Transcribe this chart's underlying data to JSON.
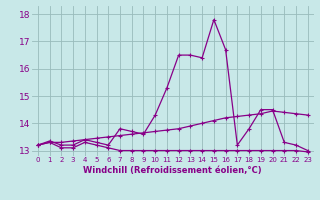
{
  "xlabel": "Windchill (Refroidissement éolien,°C)",
  "x": [
    0,
    1,
    2,
    3,
    4,
    5,
    6,
    7,
    8,
    9,
    10,
    11,
    12,
    13,
    14,
    15,
    16,
    17,
    18,
    19,
    20,
    21,
    22,
    23
  ],
  "line_flat": [
    13.2,
    13.3,
    13.1,
    13.1,
    13.3,
    13.2,
    13.1,
    13.0,
    13.0,
    13.0,
    13.0,
    13.0,
    13.0,
    13.0,
    13.0,
    13.0,
    13.0,
    13.0,
    13.0,
    13.0,
    13.0,
    13.0,
    13.0,
    12.95
  ],
  "line_peak": [
    13.2,
    13.35,
    13.2,
    13.2,
    13.4,
    13.3,
    13.2,
    13.8,
    13.7,
    13.6,
    14.3,
    15.3,
    16.5,
    16.5,
    16.4,
    17.8,
    16.7,
    13.2,
    13.8,
    14.5,
    14.5,
    13.3,
    13.2,
    13.0
  ],
  "line_trend": [
    13.2,
    13.3,
    13.3,
    13.35,
    13.4,
    13.45,
    13.5,
    13.55,
    13.6,
    13.65,
    13.7,
    13.75,
    13.8,
    13.9,
    14.0,
    14.1,
    14.2,
    14.25,
    14.3,
    14.35,
    14.45,
    14.4,
    14.35,
    14.3
  ],
  "line_color": "#880088",
  "bg_color": "#c8e8e8",
  "grid_color": "#99bbbb",
  "ylim": [
    12.8,
    18.3
  ],
  "yticks": [
    13,
    14,
    15,
    16,
    17,
    18
  ],
  "xlim": [
    -0.5,
    23.5
  ],
  "xtick_fontsize": 5.0,
  "ytick_fontsize": 6.5,
  "xlabel_fontsize": 6.0
}
